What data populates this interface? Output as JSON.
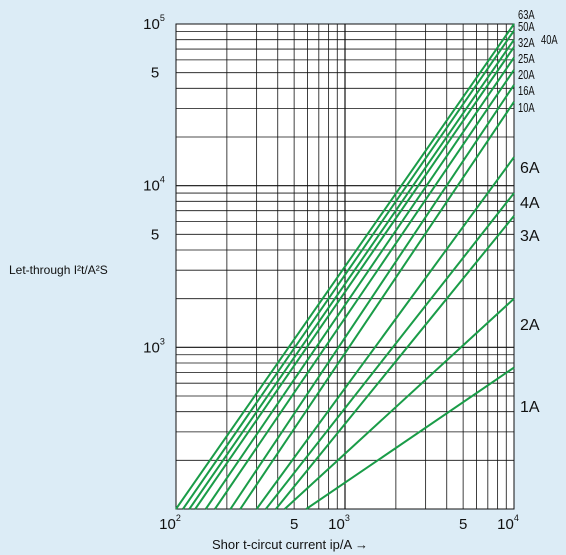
{
  "chart_data": {
    "type": "line",
    "log_x": true,
    "log_y": true,
    "xlim": [
      100,
      10000
    ],
    "ylim": [
      100,
      100000
    ],
    "xlabel": "Shor t-circut current ip/A →",
    "ylabel": "Let-through I²t/A²S",
    "grid": true,
    "background": "#dcecf6",
    "line_color": "#1a9c48",
    "x_ticks": [
      {
        "value": 100,
        "label": "10",
        "exp": "2"
      },
      {
        "value": 500,
        "label": "5",
        "exp": ""
      },
      {
        "value": 1000,
        "label": "10",
        "exp": "3"
      },
      {
        "value": 5000,
        "label": "5",
        "exp": ""
      },
      {
        "value": 10000,
        "label": "10",
        "exp": "4"
      }
    ],
    "y_ticks": [
      {
        "value": 100000,
        "label": "10",
        "exp": "5"
      },
      {
        "value": 50000,
        "label": "5",
        "exp": ""
      },
      {
        "value": 10000,
        "label": "10",
        "exp": "4"
      },
      {
        "value": 5000,
        "label": "5",
        "exp": ""
      },
      {
        "value": 1000,
        "label": "10",
        "exp": "3"
      }
    ],
    "series": [
      {
        "name": "63A",
        "points": [
          [
            100,
            100
          ],
          [
            10000,
            100000
          ]
        ]
      },
      {
        "name": "50A",
        "points": [
          [
            110,
            100
          ],
          [
            10000,
            91000
          ]
        ]
      },
      {
        "name": "40A",
        "points": [
          [
            120,
            100
          ],
          [
            10000,
            80000
          ]
        ]
      },
      {
        "name": "32A",
        "points": [
          [
            130,
            100
          ],
          [
            10000,
            72000
          ]
        ]
      },
      {
        "name": "25A",
        "points": [
          [
            150,
            100
          ],
          [
            10000,
            62000
          ]
        ]
      },
      {
        "name": "20A",
        "points": [
          [
            170,
            100
          ],
          [
            10000,
            52000
          ]
        ]
      },
      {
        "name": "16A",
        "points": [
          [
            210,
            100
          ],
          [
            10000,
            42000
          ]
        ]
      },
      {
        "name": "10A",
        "points": [
          [
            240,
            100
          ],
          [
            10000,
            33000
          ]
        ]
      },
      {
        "name": "6A",
        "points": [
          [
            300,
            100
          ],
          [
            10000,
            15000
          ]
        ]
      },
      {
        "name": "4A",
        "points": [
          [
            340,
            100
          ],
          [
            10000,
            9000
          ]
        ]
      },
      {
        "name": "3A",
        "points": [
          [
            390,
            100
          ],
          [
            10000,
            6500
          ]
        ]
      },
      {
        "name": "2A",
        "points": [
          [
            440,
            100
          ],
          [
            10000,
            2000
          ]
        ]
      },
      {
        "name": "1A",
        "points": [
          [
            590,
            100
          ],
          [
            10000,
            750
          ]
        ]
      }
    ]
  }
}
